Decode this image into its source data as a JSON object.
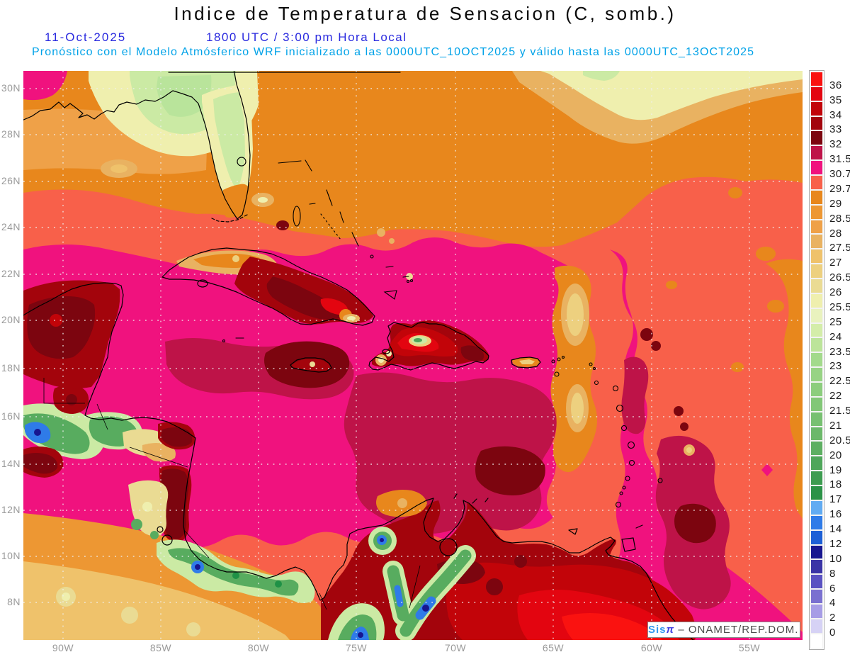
{
  "header": {
    "title": "Indice de Temperatura de Sensacion (C, somb.)",
    "date": "11-Oct-2025",
    "time_line": "1800 UTC / 3:00 pm Hora Local",
    "forecast_line": "Pronóstico con el Modelo Atmósferico WRF inicializado a las 0000UTC_10OCT2025 y válido hasta las  0000UTC_13OCT2025"
  },
  "map": {
    "lat_labels": [
      "30N",
      "28N",
      "26N",
      "24N",
      "22N",
      "20N",
      "18N",
      "16N",
      "14N",
      "12N",
      "10N",
      "8N"
    ],
    "lon_labels": [
      "90W",
      "85W",
      "80W",
      "75W",
      "70W",
      "65W",
      "60W",
      "55W"
    ]
  },
  "colorbar": {
    "values": [
      "36",
      "35",
      "34",
      "33",
      "32",
      "31.5",
      "30.7",
      "29.7",
      "29",
      "28.5",
      "28",
      "27.5",
      "27",
      "26.5",
      "26",
      "25.5",
      "25",
      "24",
      "23.5",
      "23",
      "22.5",
      "22",
      "21.5",
      "21",
      "20.5",
      "20",
      "19",
      "18",
      "17",
      "16",
      "14",
      "12",
      "10",
      "8",
      "6",
      "4",
      "2",
      "0"
    ],
    "colors": [
      "#FA1210",
      "#E30510",
      "#C20409",
      "#A3040C",
      "#7C050F",
      "#BE1348",
      "#F0127E",
      "#F8604A",
      "#E8871C",
      "#ED9733",
      "#EFA148",
      "#E9B261",
      "#EFC26B",
      "#EDD07F",
      "#EADB93",
      "#EFEFAE",
      "#E9F2BE",
      "#D4EDA9",
      "#BCE49A",
      "#A3DA8C",
      "#97D384",
      "#8CCD7D",
      "#82C777",
      "#77C071",
      "#6BB86A",
      "#5DAF62",
      "#4EA65A",
      "#3D9C50",
      "#2B9247",
      "#61ABF2",
      "#2F7BE8",
      "#1C5FD6",
      "#171690",
      "#3A34A6",
      "#5A52C2",
      "#7A70D0",
      "#A79DE6",
      "#D6D2F5",
      "#FFFFFF"
    ]
  },
  "watermark": {
    "brand": "Sis",
    "pi": "π",
    "suffix": "– ONAMET/REP.DOM."
  },
  "chart_data": {
    "type": "heatmap",
    "title": "Indice de Temperatura de Sensacion (C, somb.)",
    "date": "11-Oct-2025",
    "valid_time": "1800 UTC / 3:00 pm Hora Local",
    "xlabel_ticks": [
      "90W",
      "85W",
      "80W",
      "75W",
      "70W",
      "65W",
      "60W",
      "55W"
    ],
    "ylabel_ticks": [
      "30N",
      "28N",
      "26N",
      "24N",
      "22N",
      "20N",
      "18N",
      "16N",
      "14N",
      "12N",
      "10N",
      "8N"
    ],
    "legend_values": [
      36,
      35,
      34,
      33,
      32,
      31.5,
      30.7,
      29.7,
      29,
      28.5,
      28,
      27.5,
      27,
      26.5,
      26,
      25.5,
      25,
      24,
      23.5,
      23,
      22.5,
      22,
      21.5,
      21,
      20.5,
      20,
      19,
      18,
      17,
      16,
      14,
      12,
      10,
      8,
      6,
      4,
      2,
      0
    ],
    "legend_position": "right",
    "grid": "dotted",
    "regions_read_from_pixels": [
      {
        "area": "Gulf of Mexico / N Atlantic band (28N-30N)",
        "value_c": "28-30"
      },
      {
        "area": "N Florida / Georgia / N Gulf coast",
        "value_c": "25-26.5"
      },
      {
        "area": "Central & western Caribbean sea",
        "value_c": "30.7-31.5"
      },
      {
        "area": "S of Hispaniola / SE Caribbean patches",
        "value_c": "31.5-33"
      },
      {
        "area": "E Cuba, Hispaniola, Yucatan land cores",
        "value_c": "33-36"
      },
      {
        "area": "Open Atlantic east side",
        "value_c": "29-30.7"
      },
      {
        "area": "Guatemala / Costa Rica / Andes highlands",
        "value_c": "12-23"
      },
      {
        "area": "Venezuela / Colombia lowlands (bottom)",
        "value_c": "34-36+"
      }
    ]
  }
}
